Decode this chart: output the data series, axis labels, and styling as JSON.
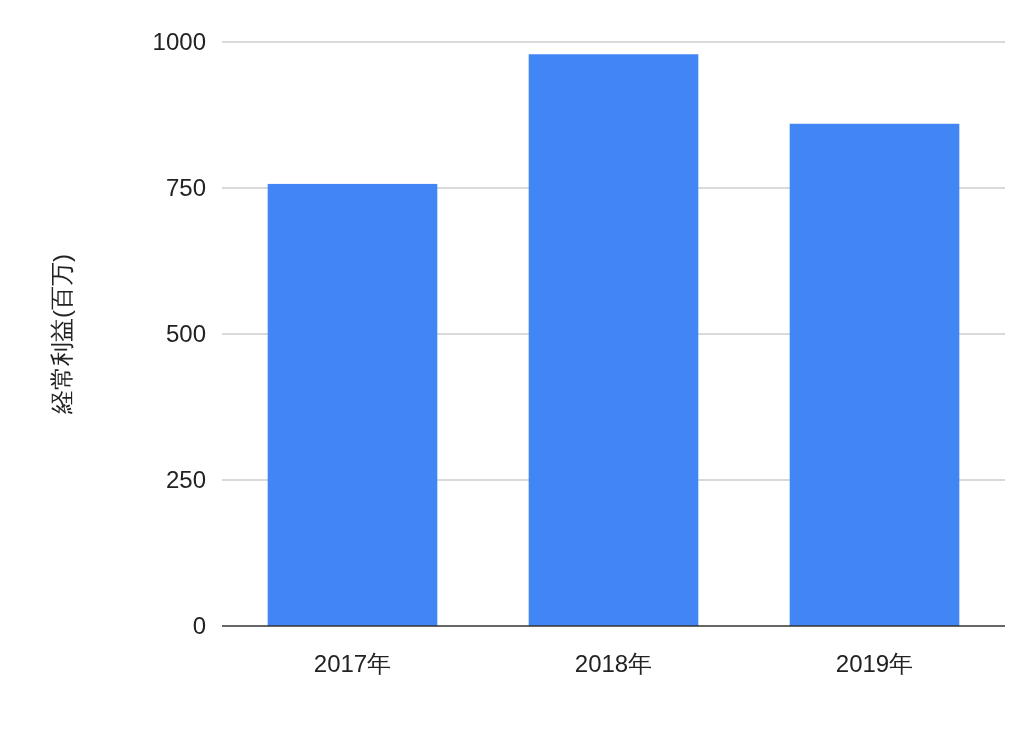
{
  "chart_data": {
    "type": "bar",
    "ylabel": "経常利益(百万)",
    "categories": [
      "2017年",
      "2018年",
      "2019年"
    ],
    "values": [
      757,
      979,
      860
    ],
    "color": "#4285f4",
    "ylim": [
      0,
      1000
    ],
    "yticks": [
      0,
      250,
      500,
      750,
      1000
    ],
    "grid": "y"
  }
}
